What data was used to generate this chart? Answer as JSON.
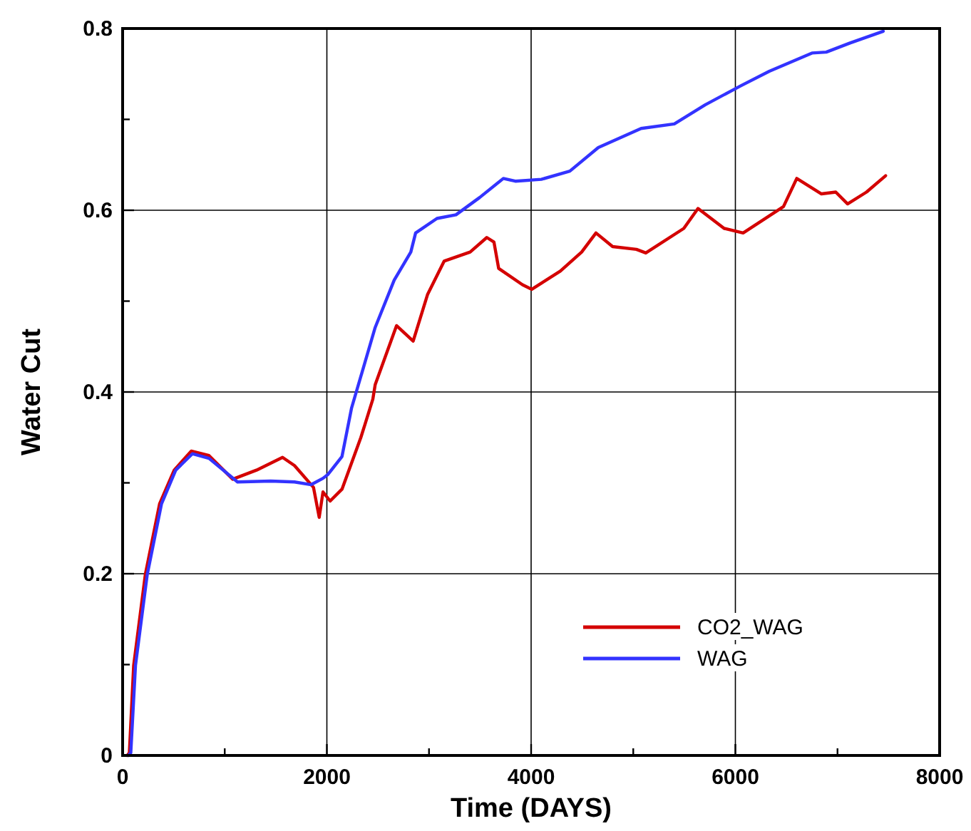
{
  "chart_data": {
    "type": "line",
    "xlabel": "Time (DAYS)",
    "ylabel": "Water Cut",
    "xlim": [
      0,
      8000
    ],
    "ylim": [
      0,
      0.8
    ],
    "xticks": [
      0,
      {
        "value": 1000,
        "label": null
      },
      2000,
      {
        "value": 3000,
        "label": null
      },
      4000,
      {
        "value": 5000,
        "label": null
      },
      6000,
      {
        "value": 7000,
        "label": null
      },
      8000
    ],
    "yticks": [
      0,
      {
        "value": 0.1,
        "label": null
      },
      0.2,
      {
        "value": 0.3,
        "label": null
      },
      0.4,
      {
        "value": 0.5,
        "label": null
      },
      0.6,
      {
        "value": 0.7,
        "label": null
      },
      0.8
    ],
    "grid": true,
    "legend": "bottom right",
    "line_style": "solid",
    "marker": "none",
    "series": [
      {
        "name": "CO2_WAG",
        "color": "#d40000",
        "x": [
          45,
          66,
          108,
          222,
          362,
          505,
          672,
          846,
          1078,
          1311,
          1566,
          1683,
          1869,
          1925,
          1962,
          2032,
          2148,
          2333,
          2450,
          2473,
          2682,
          2845,
          2985,
          3148,
          3403,
          3566,
          3636,
          3682,
          3915,
          4007,
          4286,
          4495,
          4635,
          4798,
          5031,
          5123,
          5495,
          5634,
          5890,
          6076,
          6471,
          6601,
          6843,
          6983,
          7099,
          7284,
          7471
        ],
        "values": [
          0,
          0.003,
          0.099,
          0.199,
          0.277,
          0.314,
          0.335,
          0.33,
          0.304,
          0.314,
          0.328,
          0.319,
          0.295,
          0.262,
          0.29,
          0.28,
          0.293,
          0.35,
          0.392,
          0.408,
          0.473,
          0.456,
          0.507,
          0.544,
          0.554,
          0.57,
          0.565,
          0.536,
          0.518,
          0.513,
          0.533,
          0.554,
          0.575,
          0.56,
          0.557,
          0.553,
          0.58,
          0.602,
          0.58,
          0.575,
          0.604,
          0.635,
          0.618,
          0.62,
          0.607,
          0.62,
          0.638
        ]
      },
      {
        "name": "WAG",
        "color": "#3333ff",
        "x": [
          56,
          80,
          126,
          241,
          381,
          520,
          683,
          846,
          1125,
          1450,
          1683,
          1846,
          1962,
          2008,
          2148,
          2241,
          2473,
          2659,
          2822,
          2869,
          3078,
          3264,
          3496,
          3728,
          3845,
          4100,
          4379,
          4658,
          5077,
          5402,
          5704,
          6053,
          6332,
          6750,
          6890,
          7122,
          7448
        ],
        "values": [
          0,
          0.003,
          0.099,
          0.199,
          0.277,
          0.314,
          0.332,
          0.327,
          0.301,
          0.302,
          0.301,
          0.298,
          0.305,
          0.309,
          0.329,
          0.382,
          0.471,
          0.523,
          0.554,
          0.575,
          0.591,
          0.595,
          0.614,
          0.635,
          0.632,
          0.634,
          0.643,
          0.669,
          0.69,
          0.695,
          0.716,
          0.737,
          0.753,
          0.773,
          0.774,
          0.784,
          0.797
        ]
      }
    ]
  }
}
